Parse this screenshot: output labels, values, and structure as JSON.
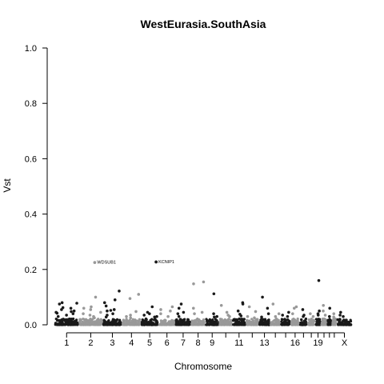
{
  "chart_data": {
    "type": "scatter",
    "title": "WestEurasia.SouthAsia",
    "xlabel": "Chromosome",
    "ylabel": "Vst",
    "ylim": [
      0,
      1
    ],
    "yticks": [
      "0.0",
      "0.2",
      "0.4",
      "0.6",
      "0.8",
      "1.0"
    ],
    "grid": false,
    "legend": "none",
    "colors": {
      "dark": "#1a1a1a",
      "light": "#999999"
    },
    "chromosomes": [
      "1",
      "2",
      "3",
      "4",
      "5",
      "6",
      "7",
      "8",
      "9",
      "10",
      "11",
      "12",
      "13",
      "14",
      "15",
      "16",
      "17",
      "18",
      "19",
      "20",
      "21",
      "22",
      "X"
    ],
    "chromosome_labels": [
      "1",
      "2",
      "3",
      "4",
      "5",
      "6",
      "7",
      "8",
      "9",
      "11",
      "13",
      "16",
      "19",
      "X"
    ],
    "peaks": [
      {
        "chrom": "1",
        "values": [
          0.06,
          0.048,
          0.08,
          0.055,
          0.042,
          0.075,
          0.05,
          0.035,
          0.062,
          0.045,
          0.03,
          0.078,
          0.04
        ]
      },
      {
        "chrom": "2",
        "values": [
          0.1,
          0.065,
          0.06,
          0.045,
          0.03,
          0.035,
          0.055,
          0.04,
          0.025
        ]
      },
      {
        "chrom": "3",
        "values": [
          0.09,
          0.122,
          0.055,
          0.052,
          0.08,
          0.068,
          0.035,
          0.05,
          0.028,
          0.04
        ]
      },
      {
        "chrom": "4",
        "values": [
          0.11,
          0.048,
          0.095,
          0.035,
          0.03,
          0.025
        ]
      },
      {
        "chrom": "5",
        "values": [
          0.065,
          0.04,
          0.03,
          0.045,
          0.035,
          0.028
        ]
      },
      {
        "chrom": "6",
        "values": [
          0.055,
          0.05,
          0.065,
          0.04,
          0.03
        ]
      },
      {
        "chrom": "7",
        "values": [
          0.06,
          0.045,
          0.075,
          0.04,
          0.03
        ]
      },
      {
        "chrom": "8",
        "values": [
          0.155,
          0.148,
          0.06,
          0.045,
          0.04
        ]
      },
      {
        "chrom": "9",
        "values": [
          0.112,
          0.04,
          0.03,
          0.028
        ]
      },
      {
        "chrom": "10",
        "values": [
          0.07,
          0.045,
          0.035,
          0.03
        ]
      },
      {
        "chrom": "11",
        "values": [
          0.08,
          0.075,
          0.05,
          0.038,
          0.032
        ]
      },
      {
        "chrom": "12",
        "values": [
          0.065,
          0.048,
          0.03,
          0.025
        ]
      },
      {
        "chrom": "13",
        "values": [
          0.1,
          0.06,
          0.04,
          0.028
        ]
      },
      {
        "chrom": "14",
        "values": [
          0.075,
          0.04,
          0.03
        ]
      },
      {
        "chrom": "15",
        "values": [
          0.045,
          0.035,
          0.03
        ]
      },
      {
        "chrom": "16",
        "values": [
          0.065,
          0.06,
          0.04
        ]
      },
      {
        "chrom": "17",
        "values": [
          0.055,
          0.035,
          0.03
        ]
      },
      {
        "chrom": "18",
        "values": [
          0.04,
          0.03
        ]
      },
      {
        "chrom": "19",
        "values": [
          0.16,
          0.05,
          0.04,
          0.035
        ]
      },
      {
        "chrom": "20",
        "values": [
          0.05,
          0.07,
          0.035
        ]
      },
      {
        "chrom": "21",
        "values": [
          0.06,
          0.03
        ]
      },
      {
        "chrom": "22",
        "values": [
          0.04,
          0.028
        ]
      },
      {
        "chrom": "X",
        "values": [
          0.045,
          0.035,
          0.03
        ]
      }
    ],
    "annotations": [
      {
        "chrom": "2",
        "label": "WDSUB1",
        "value": 0.225
      },
      {
        "chrom": "5",
        "label": "KCNIP1",
        "value": 0.227
      }
    ]
  }
}
